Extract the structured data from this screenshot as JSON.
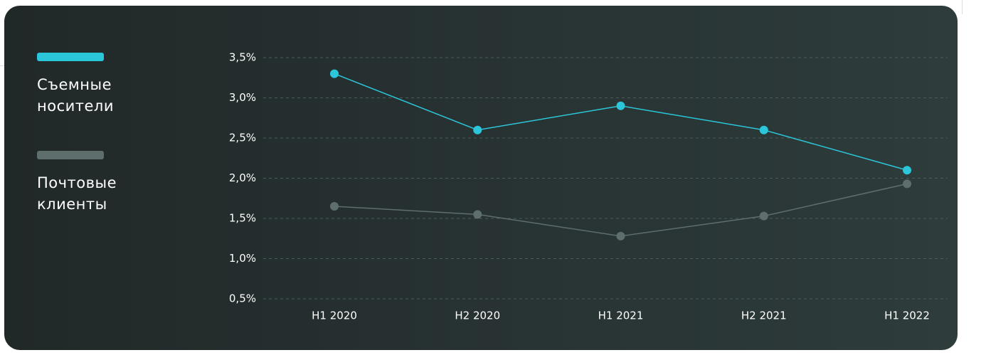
{
  "chart_data": {
    "type": "line",
    "categories": [
      "H1 2020",
      "H2 2020",
      "H1 2021",
      "H2 2021",
      "H1 2022"
    ],
    "series": [
      {
        "name": "Съемные носители",
        "color": "#2bc6d9",
        "values": [
          3.3,
          2.6,
          2.9,
          2.6,
          2.1
        ]
      },
      {
        "name": "Почтовые клиенты",
        "color": "#5e6e6c",
        "values": [
          1.65,
          1.55,
          1.28,
          1.53,
          1.93
        ]
      }
    ],
    "ylim": [
      0.5,
      3.5
    ],
    "yticks": [
      {
        "value": 0.5,
        "label": "0,5%"
      },
      {
        "value": 1.0,
        "label": "1,0%"
      },
      {
        "value": 1.5,
        "label": "1,5%"
      },
      {
        "value": 2.0,
        "label": "2,0%"
      },
      {
        "value": 2.5,
        "label": "2,5%"
      },
      {
        "value": 3.0,
        "label": "3,0%"
      },
      {
        "value": 3.5,
        "label": "3,5%"
      }
    ],
    "grid": true
  }
}
